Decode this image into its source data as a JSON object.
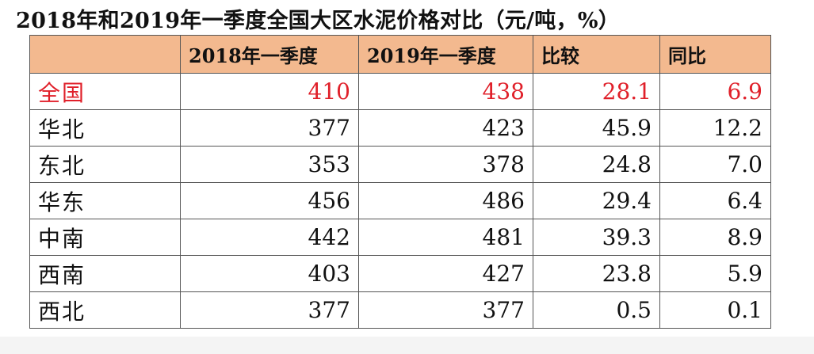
{
  "title": "2018年和2019年一季度全国大区水泥价格对比（元/吨，%）",
  "chart_data": {
    "type": "table",
    "columns": [
      "",
      "2018年一季度",
      "2019年一季度",
      "比较",
      "同比"
    ],
    "rows": [
      {
        "region": "全国",
        "q1_2018": "410",
        "q1_2019": "438",
        "diff": "28.1",
        "yoy": "6.9"
      },
      {
        "region": "华北",
        "q1_2018": "377",
        "q1_2019": "423",
        "diff": "45.9",
        "yoy": "12.2"
      },
      {
        "region": "东北",
        "q1_2018": "353",
        "q1_2019": "378",
        "diff": "24.8",
        "yoy": "7.0"
      },
      {
        "region": "华东",
        "q1_2018": "456",
        "q1_2019": "486",
        "diff": "29.4",
        "yoy": "6.4"
      },
      {
        "region": "中南",
        "q1_2018": "442",
        "q1_2019": "481",
        "diff": "39.3",
        "yoy": "8.9"
      },
      {
        "region": "西南",
        "q1_2018": "403",
        "q1_2019": "427",
        "diff": "23.8",
        "yoy": "5.9"
      },
      {
        "region": "西北",
        "q1_2018": "377",
        "q1_2019": "377",
        "diff": "0.5",
        "yoy": "0.1"
      }
    ]
  },
  "colors": {
    "header_bg": "#f3b98f",
    "highlight_text": "#e0202a",
    "border": "#555555"
  }
}
